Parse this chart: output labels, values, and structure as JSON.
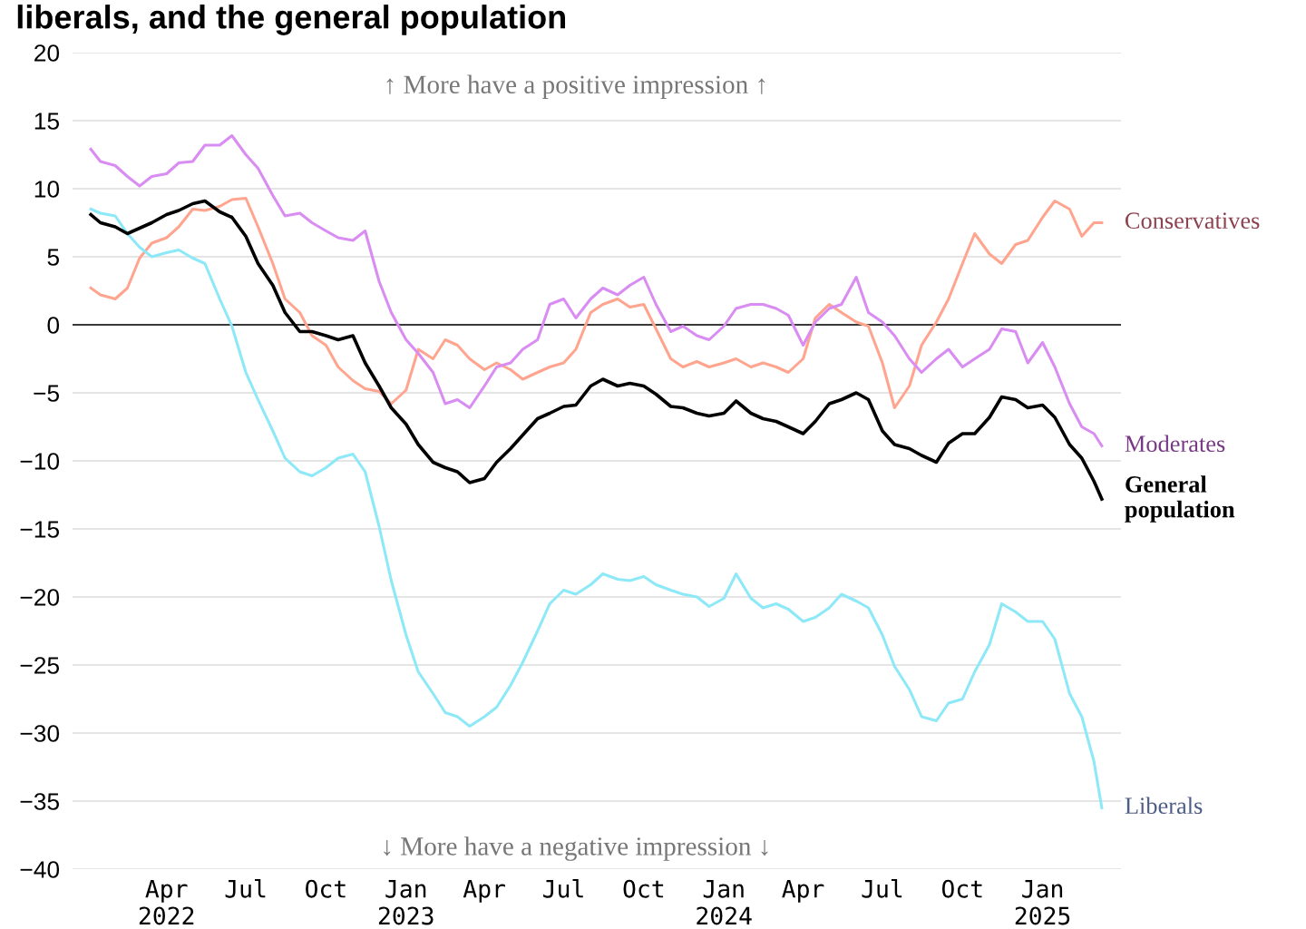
{
  "chart_data": {
    "type": "line",
    "title": "liberals, and the general population",
    "annotations": [
      "↑ More have a positive impression ↑",
      "↓ More have a negative impression ↓"
    ],
    "x": [
      "2022-01-04",
      "2022-01-15",
      "2022-02-01",
      "2022-02-15",
      "2022-03-01",
      "2022-03-15",
      "2022-04-01",
      "2022-04-15",
      "2022-05-01",
      "2022-05-15",
      "2022-06-01",
      "2022-06-15",
      "2022-07-01",
      "2022-07-15",
      "2022-08-01",
      "2022-08-15",
      "2022-09-01",
      "2022-09-15",
      "2022-10-01",
      "2022-10-15",
      "2022-11-01",
      "2022-11-15",
      "2022-12-01",
      "2022-12-15",
      "2023-01-01",
      "2023-01-15",
      "2023-02-01",
      "2023-02-15",
      "2023-03-01",
      "2023-03-15",
      "2023-04-01",
      "2023-04-15",
      "2023-05-01",
      "2023-05-15",
      "2023-06-01",
      "2023-06-15",
      "2023-07-01",
      "2023-07-15",
      "2023-08-01",
      "2023-08-15",
      "2023-09-01",
      "2023-09-15",
      "2023-10-01",
      "2023-10-15",
      "2023-11-01",
      "2023-11-15",
      "2023-12-01",
      "2023-12-15",
      "2024-01-01",
      "2024-01-15",
      "2024-02-01",
      "2024-02-15",
      "2024-03-01",
      "2024-03-15",
      "2024-04-01",
      "2024-04-15",
      "2024-05-01",
      "2024-05-15",
      "2024-06-01",
      "2024-06-15",
      "2024-07-01",
      "2024-07-15",
      "2024-08-01",
      "2024-08-15",
      "2024-09-01",
      "2024-09-15",
      "2024-10-01",
      "2024-10-15",
      "2024-11-01",
      "2024-11-15",
      "2024-12-01",
      "2024-12-15",
      "2025-01-01",
      "2025-01-15",
      "2025-02-01",
      "2025-02-15",
      "2025-03-01",
      "2025-03-10"
    ],
    "series": [
      {
        "name": "Conservatives",
        "color": "#ffa58f",
        "values": [
          2.7,
          2.2,
          1.9,
          2.7,
          4.9,
          6.0,
          6.4,
          7.2,
          8.5,
          8.4,
          8.7,
          9.2,
          9.3,
          7.2,
          4.5,
          1.9,
          0.9,
          -0.8,
          -1.5,
          -3.1,
          -4.1,
          -4.7,
          -4.9,
          -5.8,
          -4.8,
          -1.8,
          -2.5,
          -1.1,
          -1.5,
          -2.5,
          -3.3,
          -2.8,
          -3.3,
          -4.0,
          -3.5,
          -3.1,
          -2.8,
          -1.8,
          0.9,
          1.5,
          1.9,
          1.3,
          1.5,
          -0.3,
          -2.5,
          -3.1,
          -2.7,
          -3.1,
          -2.8,
          -2.5,
          -3.1,
          -2.8,
          -3.1,
          -3.5,
          -2.5,
          0.5,
          1.5,
          0.9,
          0.2,
          -0.1,
          -2.8,
          -6.1,
          -4.5,
          -1.5,
          0.2,
          1.9,
          4.5,
          6.7,
          5.2,
          4.5,
          5.9,
          6.2,
          7.9,
          9.1,
          8.5,
          6.5,
          7.5,
          7.5
        ]
      },
      {
        "name": "Moderates",
        "color": "#d98cf2",
        "values": [
          12.9,
          12.0,
          11.7,
          10.9,
          10.2,
          10.9,
          11.1,
          11.9,
          12.0,
          13.2,
          13.2,
          13.9,
          12.5,
          11.5,
          9.5,
          8.0,
          8.2,
          7.5,
          6.9,
          6.4,
          6.2,
          6.9,
          3.2,
          0.9,
          -1.1,
          -2.1,
          -3.5,
          -5.8,
          -5.5,
          -6.1,
          -4.5,
          -3.1,
          -2.8,
          -1.8,
          -1.1,
          1.5,
          1.9,
          0.5,
          1.9,
          2.7,
          2.2,
          2.9,
          3.5,
          1.5,
          -0.5,
          -0.1,
          -0.8,
          -1.1,
          -0.1,
          1.2,
          1.5,
          1.5,
          1.2,
          0.7,
          -1.5,
          0.2,
          1.2,
          1.5,
          3.5,
          0.9,
          0.2,
          -0.8,
          -2.5,
          -3.5,
          -2.5,
          -1.8,
          -3.1,
          -2.5,
          -1.8,
          -0.3,
          -0.5,
          -2.8,
          -1.3,
          -3.1,
          -5.8,
          -7.5,
          -8.0,
          -8.9
        ]
      },
      {
        "name": "General population",
        "color": "#000000",
        "values": [
          8.1,
          7.5,
          7.2,
          6.7,
          7.1,
          7.5,
          8.1,
          8.4,
          8.9,
          9.1,
          8.3,
          7.9,
          6.5,
          4.5,
          2.9,
          0.9,
          -0.5,
          -0.5,
          -0.8,
          -1.1,
          -0.8,
          -2.8,
          -4.5,
          -6.1,
          -7.3,
          -8.8,
          -10.1,
          -10.5,
          -10.8,
          -11.6,
          -11.3,
          -10.1,
          -9.1,
          -8.1,
          -6.9,
          -6.5,
          -6.0,
          -5.9,
          -4.5,
          -4.0,
          -4.5,
          -4.3,
          -4.5,
          -5.1,
          -6.0,
          -6.1,
          -6.5,
          -6.7,
          -6.5,
          -5.6,
          -6.5,
          -6.9,
          -7.1,
          -7.5,
          -8.0,
          -7.1,
          -5.8,
          -5.5,
          -5.0,
          -5.5,
          -7.8,
          -8.8,
          -9.1,
          -9.6,
          -10.1,
          -8.7,
          -8.0,
          -8.0,
          -6.8,
          -5.3,
          -5.5,
          -6.1,
          -5.9,
          -6.8,
          -8.8,
          -9.8,
          -11.5,
          -12.8
        ]
      },
      {
        "name": "Liberals",
        "color": "#8de8f8",
        "values": [
          8.5,
          8.2,
          8.0,
          6.7,
          5.7,
          5.0,
          5.3,
          5.5,
          4.9,
          4.5,
          1.9,
          -0.1,
          -3.5,
          -5.5,
          -7.8,
          -9.8,
          -10.8,
          -11.1,
          -10.5,
          -9.8,
          -9.5,
          -10.8,
          -14.8,
          -18.8,
          -22.8,
          -25.5,
          -27.1,
          -28.5,
          -28.8,
          -29.5,
          -28.8,
          -28.1,
          -26.5,
          -24.8,
          -22.5,
          -20.5,
          -19.5,
          -19.8,
          -19.1,
          -18.3,
          -18.7,
          -18.8,
          -18.5,
          -19.1,
          -19.5,
          -19.8,
          -20.0,
          -20.7,
          -20.1,
          -18.3,
          -20.1,
          -20.8,
          -20.5,
          -20.9,
          -21.8,
          -21.5,
          -20.8,
          -19.8,
          -20.3,
          -20.8,
          -22.8,
          -25.1,
          -26.8,
          -28.8,
          -29.1,
          -27.8,
          -27.5,
          -25.5,
          -23.5,
          -20.5,
          -21.1,
          -21.8,
          -21.8,
          -23.1,
          -27.1,
          -28.8,
          -32.1,
          -35.5
        ]
      }
    ],
    "xlim": [
      "2021-12-14",
      "2025-04-01"
    ],
    "xticks": [
      {
        "value": "2022-04-01",
        "label": "Apr\n2022"
      },
      {
        "value": "2022-07-01",
        "label": "Jul"
      },
      {
        "value": "2022-10-01",
        "label": "Oct"
      },
      {
        "value": "2023-01-01",
        "label": "Jan\n2023"
      },
      {
        "value": "2023-04-01",
        "label": "Apr"
      },
      {
        "value": "2023-07-01",
        "label": "Jul"
      },
      {
        "value": "2023-10-01",
        "label": "Oct"
      },
      {
        "value": "2024-01-01",
        "label": "Jan\n2024"
      },
      {
        "value": "2024-04-01",
        "label": "Apr"
      },
      {
        "value": "2024-07-01",
        "label": "Jul"
      },
      {
        "value": "2024-10-01",
        "label": "Oct"
      },
      {
        "value": "2025-01-01",
        "label": "Jan\n2025"
      }
    ],
    "ylim": [
      -40,
      20
    ],
    "yticks": [
      -40,
      -35,
      -30,
      -25,
      -20,
      -15,
      -10,
      -5,
      0,
      5,
      10,
      15,
      20
    ],
    "ref_lines": [
      {
        "axis": "y",
        "value": 0,
        "color": "#000000"
      }
    ],
    "grid": "y",
    "legend": false,
    "line_style": "solid",
    "marker": "none"
  }
}
